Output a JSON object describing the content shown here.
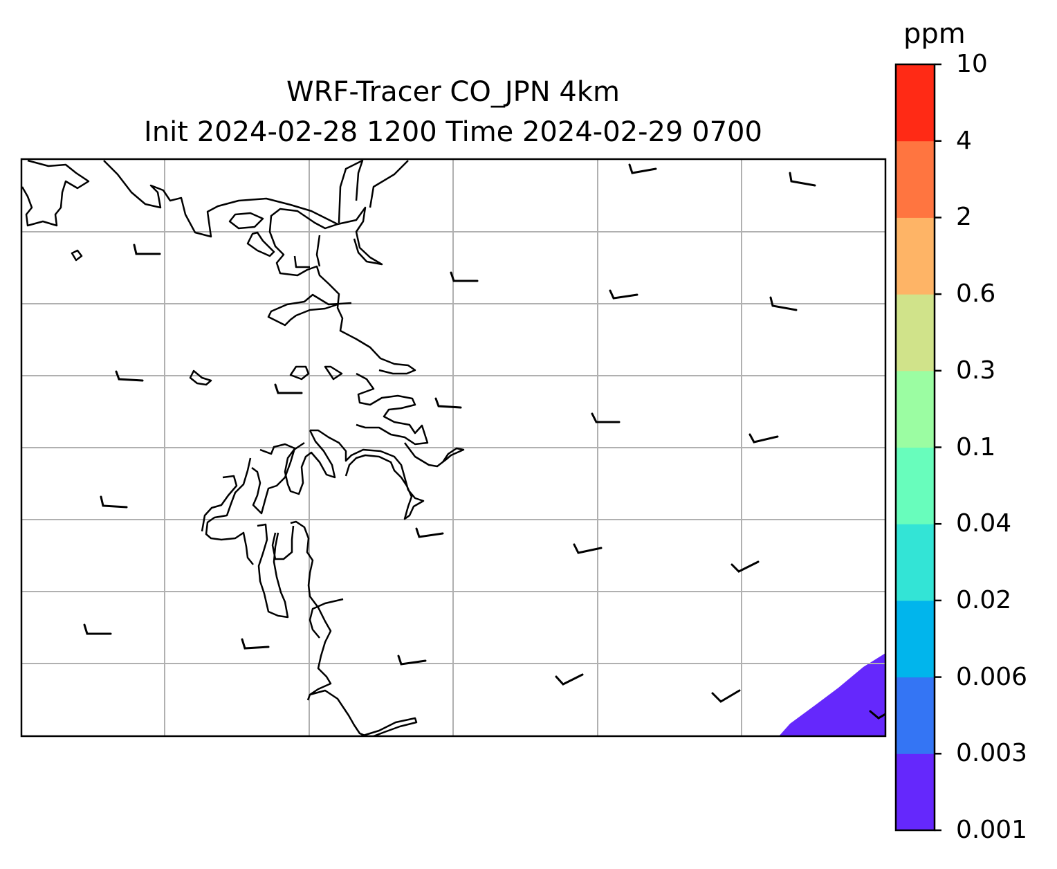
{
  "title": {
    "line1": "WRF-Tracer CO_JPN 4km",
    "line2": "Init 2024-02-28 1200 Time 2024-02-29 0700"
  },
  "colorbar": {
    "unit": "ppm",
    "levels": [
      "0.001",
      "0.003",
      "0.006",
      "0.02",
      "0.04",
      "0.1",
      "0.3",
      "0.6",
      "2",
      "4",
      "10"
    ],
    "colors": [
      "#6528fc",
      "#3475f4",
      "#01b5ec",
      "#33e4d6",
      "#68fdbc",
      "#9bfda2",
      "#d0e38a",
      "#feb466",
      "#ff7540",
      "#ff2a15"
    ]
  },
  "map": {
    "features": [
      "coastline",
      "lat-lon-gridlines",
      "wind-barbs"
    ],
    "filled_region": {
      "color": "#6528fc",
      "level_range": [
        "0.001",
        "0.003"
      ],
      "location": "bottom-right"
    }
  }
}
